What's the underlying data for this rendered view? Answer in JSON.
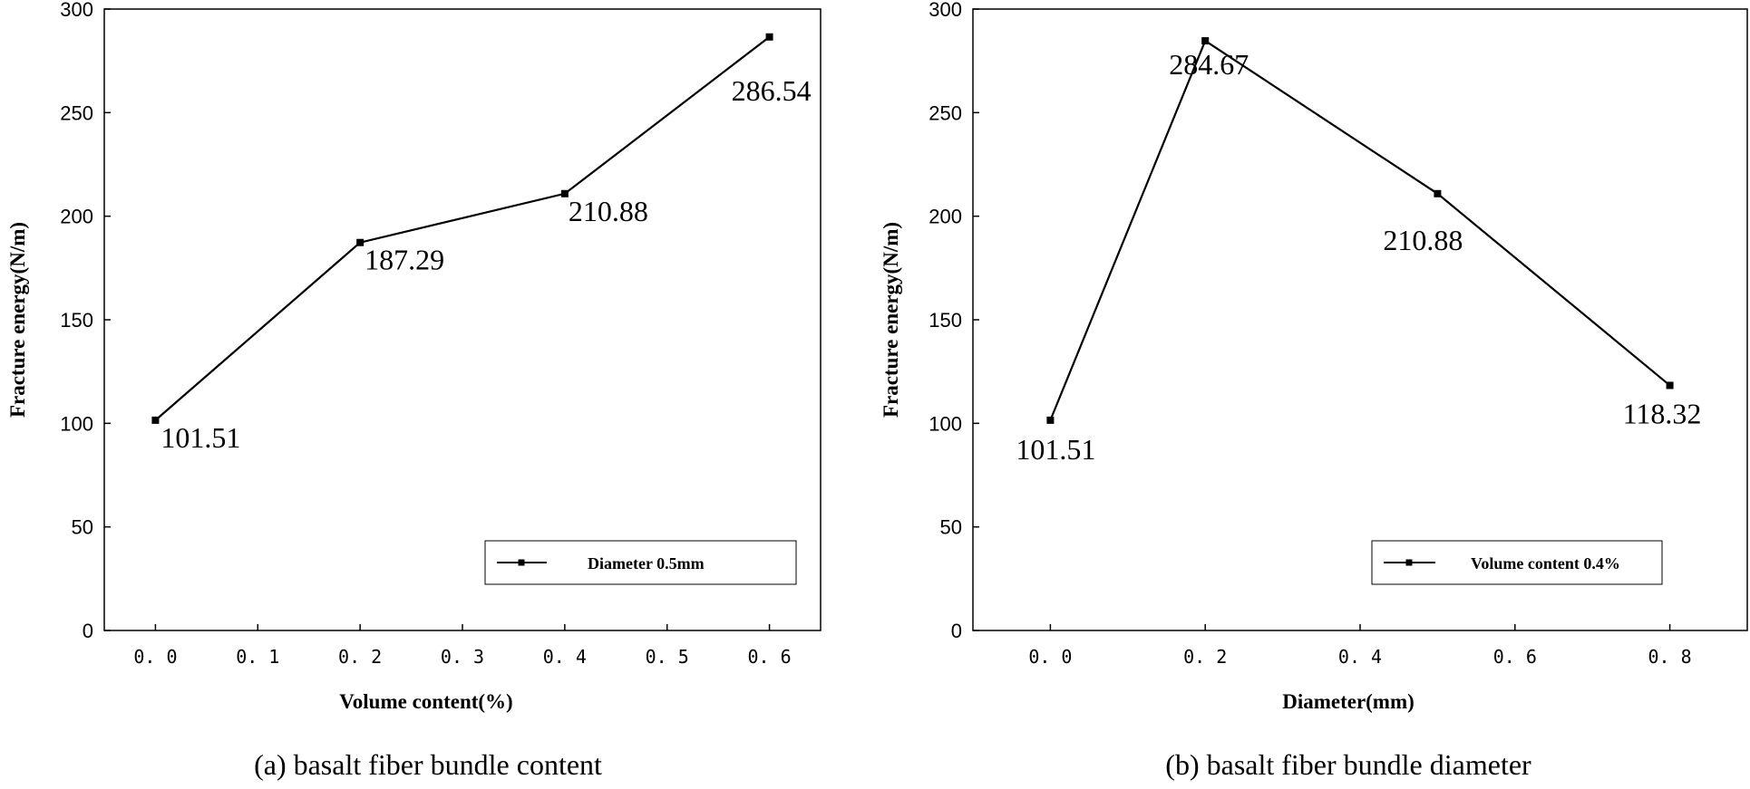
{
  "chart_data": [
    {
      "type": "line",
      "caption": "(a) basalt fiber bundle content",
      "xlabel": "Volume content(%)",
      "ylabel": "Fracture energy(N/m)",
      "xlim": [
        -0.05,
        0.65
      ],
      "ylim": [
        0,
        300
      ],
      "xticks": [
        "0. 0",
        "0. 1",
        "0. 2",
        "0. 3",
        "0. 4",
        "0. 5",
        "0. 6"
      ],
      "xtick_values": [
        0.0,
        0.1,
        0.2,
        0.3,
        0.4,
        0.5,
        0.6
      ],
      "yticks": [
        "0",
        "50",
        "100",
        "150",
        "200",
        "250",
        "300"
      ],
      "ytick_values": [
        0,
        50,
        100,
        150,
        200,
        250,
        300
      ],
      "legend_position": "bottom-right",
      "series": [
        {
          "name": "Diameter 0.5mm",
          "x": [
            0.0,
            0.2,
            0.4,
            0.6
          ],
          "y": [
            101.51,
            187.29,
            210.88,
            286.54
          ],
          "labels": [
            "101.51",
            "187.29",
            "210.88",
            "286.54"
          ]
        }
      ]
    },
    {
      "type": "line",
      "caption": "(b) basalt fiber bundle diameter",
      "xlabel": "Diameter(mm)",
      "ylabel": "Fracture energy(N/m)",
      "xlim": [
        -0.1,
        0.9
      ],
      "ylim": [
        0,
        300
      ],
      "xticks": [
        "0. 0",
        "0. 2",
        "0. 4",
        "0. 6",
        "0. 8"
      ],
      "xtick_values": [
        0.0,
        0.2,
        0.4,
        0.6,
        0.8
      ],
      "yticks": [
        "0",
        "50",
        "100",
        "150",
        "200",
        "250",
        "300"
      ],
      "ytick_values": [
        0,
        50,
        100,
        150,
        200,
        250,
        300
      ],
      "legend_position": "bottom-right",
      "series": [
        {
          "name": "Volume content 0.4%",
          "x": [
            0.0,
            0.2,
            0.5,
            0.8
          ],
          "y": [
            101.51,
            284.67,
            210.88,
            118.32
          ],
          "labels": [
            "101.51",
            "284.67",
            "210.88",
            "118.32"
          ]
        }
      ]
    }
  ]
}
